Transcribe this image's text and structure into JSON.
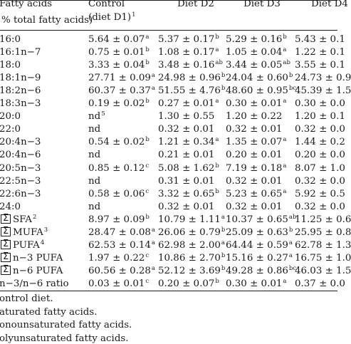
{
  "header": {
    "col0_line1": "Fatty acids",
    "col0_line2": "% total fatty acids)",
    "col1_line1": "Control",
    "col1_line2": "(diet D1)",
    "col1_sup": "1",
    "col2": "Diet D2",
    "col3": "Diet D3",
    "col4": "Diet D4"
  },
  "rows": [
    {
      "name": "16:0",
      "name_sup": "",
      "sigma": false,
      "d1": "5.64 ± 0.07",
      "d1s": "a",
      "d2": "5.37 ± 0.17",
      "d2s": "b",
      "d3": "5.29 ± 0.16",
      "d3s": "b",
      "d4": "5.43 ± 0.1",
      "d4s": ""
    },
    {
      "name": "16:1n−7",
      "name_sup": "",
      "sigma": false,
      "d1": "0.75 ± 0.01",
      "d1s": "b",
      "d2": "1.08 ± 0.17",
      "d2s": "a",
      "d3": "1.05 ± 0.04",
      "d3s": "a",
      "d4": "1.22 ± 0.1",
      "d4s": ""
    },
    {
      "name": "18:0",
      "name_sup": "",
      "sigma": false,
      "d1": "3.33 ± 0.04",
      "d1s": "b",
      "d2": "3.48 ± 0.16",
      "d2s": "ab",
      "d3": "3.44 ± 0.05",
      "d3s": "ab",
      "d4": "3.55 ± 0.1",
      "d4s": ""
    },
    {
      "name": "18:1n−9",
      "name_sup": "",
      "sigma": false,
      "d1": "27.71 ± 0.09",
      "d1s": "a",
      "d2": "24.98 ± 0.96",
      "d2s": "b",
      "d3": "24.04 ± 0.60",
      "d3s": "b",
      "d4": "24.73 ± 0.9",
      "d4s": ""
    },
    {
      "name": "18:2n−6",
      "name_sup": "",
      "sigma": false,
      "d1": "60.37 ± 0.37",
      "d1s": "a",
      "d2": "51.55 ± 4.76",
      "d2s": "b",
      "d3": "48.60 ± 0.95",
      "d3s": "bc",
      "d4": "45.39 ± 1.5",
      "d4s": ""
    },
    {
      "name": "18:3n−3",
      "name_sup": "",
      "sigma": false,
      "d1": "0.19 ± 0.02",
      "d1s": "b",
      "d2": "0.27 ± 0.01",
      "d2s": "a",
      "d3": "0.30 ± 0.01",
      "d3s": "a",
      "d4": "0.30 ± 0.0",
      "d4s": ""
    },
    {
      "name": "20:0",
      "name_sup": "",
      "sigma": false,
      "d1": "nd",
      "d1s": "5",
      "d2": "1.30 ± 0.55",
      "d2s": "",
      "d3": "1.20 ± 0.22",
      "d3s": "",
      "d4": "1.20 ± 0.1",
      "d4s": ""
    },
    {
      "name": "22:0",
      "name_sup": "",
      "sigma": false,
      "d1": "nd",
      "d1s": "",
      "d2": "0.32 ± 0.01",
      "d2s": "",
      "d3": "0.32 ± 0.01",
      "d3s": "",
      "d4": "0.32 ± 0.0",
      "d4s": ""
    },
    {
      "name": "20:4n−3",
      "name_sup": "",
      "sigma": false,
      "d1": "0.54 ± 0.02",
      "d1s": "b",
      "d2": "1.21 ± 0.34",
      "d2s": "a",
      "d3": "1.35 ± 0.07",
      "d3s": "a",
      "d4": "1.44 ± 0.2",
      "d4s": ""
    },
    {
      "name": "20:4n−6",
      "name_sup": "",
      "sigma": false,
      "d1": "nd",
      "d1s": "",
      "d2": "0.21 ± 0.01",
      "d2s": "",
      "d3": "0.20 ± 0.01",
      "d3s": "",
      "d4": "0.20 ± 0.0",
      "d4s": ""
    },
    {
      "name": "20:5n−3",
      "name_sup": "",
      "sigma": false,
      "d1": "0.85 ± 0.12",
      "d1s": "c",
      "d2": "5.08 ± 1.62",
      "d2s": "b",
      "d3": "7.19 ± 0.18",
      "d3s": "a",
      "d4": "8.07 ± 1.0",
      "d4s": ""
    },
    {
      "name": "22:5n−3",
      "name_sup": "",
      "sigma": false,
      "d1": "nd",
      "d1s": "",
      "d2": "0.31 ± 0.01",
      "d2s": "",
      "d3": "0.32 ± 0.01",
      "d3s": "",
      "d4": "0.32 ± 0.0",
      "d4s": ""
    },
    {
      "name": "22:6n−3",
      "name_sup": "",
      "sigma": false,
      "d1": "0.58 ± 0.06",
      "d1s": "c",
      "d2": "3.32 ± 0.65",
      "d2s": "b",
      "d3": "5.23 ± 0.65",
      "d3s": "a",
      "d4": "5.92 ± 0.5",
      "d4s": ""
    },
    {
      "name": "24:0",
      "name_sup": "",
      "sigma": false,
      "d1": "nd",
      "d1s": "",
      "d2": "0.32 ± 0.01",
      "d2s": "",
      "d3": "0.32 ± 0.01",
      "d3s": "",
      "d4": "0.32 ± 0.0",
      "d4s": ""
    },
    {
      "name": "SFA",
      "name_sup": "2",
      "sigma": true,
      "d1": "8.97 ± 0.09",
      "d1s": "b",
      "d2": "10.79 ± 1.11",
      "d2s": "a",
      "d3": "10.37 ± 0.65",
      "d3s": "ab",
      "d4": "11.25 ± 0.6",
      "d4s": ""
    },
    {
      "name": "MUFA",
      "name_sup": "3",
      "sigma": true,
      "d1": "28.47 ± 0.08",
      "d1s": "a",
      "d2": "26.06 ± 0.79",
      "d2s": "b",
      "d3": "25.09 ± 0.63",
      "d3s": "b",
      "d4": "25.95 ± 0.8",
      "d4s": ""
    },
    {
      "name": "PUFA",
      "name_sup": "4",
      "sigma": true,
      "d1": "62.53 ± 0.14",
      "d1s": "a",
      "d2": "62.98 ± 2.00",
      "d2s": "a",
      "d3": "64.44 ± 0.59",
      "d3s": "a",
      "d4": "62.78 ± 1.3",
      "d4s": ""
    },
    {
      "name": "n−3 PUFA",
      "name_sup": "",
      "sigma": true,
      "d1": "1.97 ± 0.22",
      "d1s": "c",
      "d2": "10.86 ± 2.70",
      "d2s": "b",
      "d3": "15.16 ± 0.27",
      "d3s": "a",
      "d4": "16.75 ± 1.0",
      "d4s": ""
    },
    {
      "name": "n−6 PUFA",
      "name_sup": "",
      "sigma": true,
      "d1": "60.56 ± 0.28",
      "d1s": "a",
      "d2": "52.12 ± 3.69",
      "d2s": "b",
      "d3": "49.28 ± 0.86",
      "d3s": "bc",
      "d4": "46.03 ± 1.5",
      "d4s": ""
    },
    {
      "name": "n−3/n−6 ratio",
      "name_sup": "",
      "sigma": false,
      "d1": "0.03 ± 0.01",
      "d1s": "c",
      "d2": "0.20 ± 0.07",
      "d2s": "b",
      "d3": "0.30 ± 0.01",
      "d3s": "a",
      "d4": "0.37 ± 0.0",
      "d4s": ""
    }
  ],
  "footnotes": [
    "ontrol diet.",
    "aturated fatty acids.",
    "onounsaturated fatty acids.",
    "olyunsaturated fatty acids."
  ]
}
